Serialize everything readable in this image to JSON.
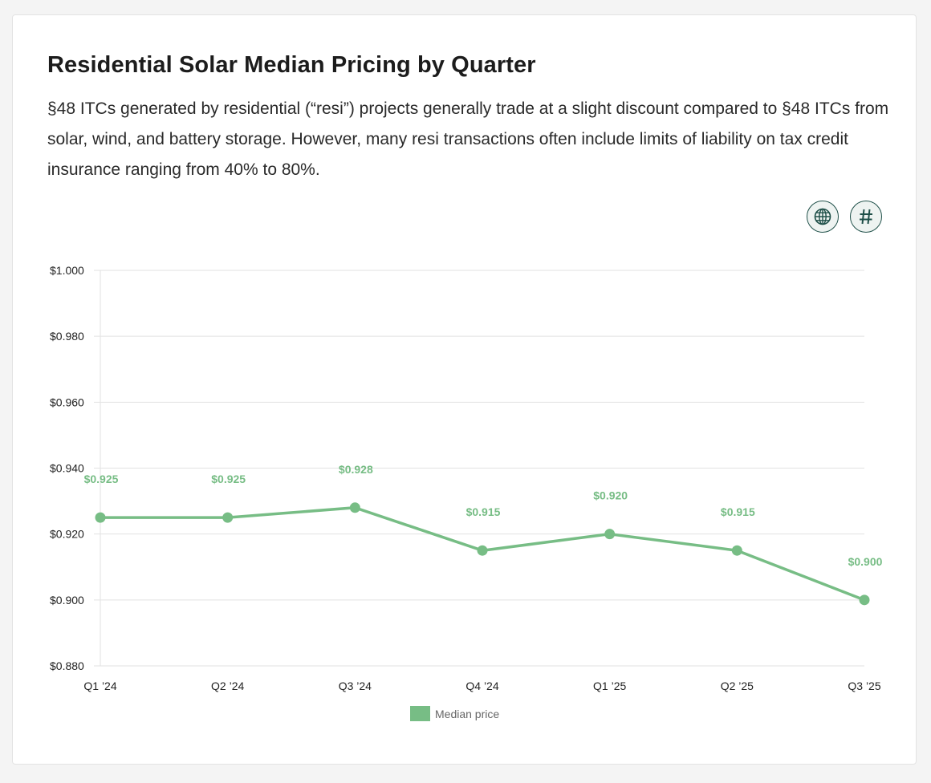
{
  "header": {
    "title": "Residential Solar Median Pricing by Quarter",
    "description": "§48 ITCs generated by residential (“resi”) projects generally trade at a slight discount compared to §48 ITCs from solar, wind, and battery storage. However, many resi transactions often include limits of liability on tax credit insurance ranging from 40% to 80%."
  },
  "toolbar": {
    "globe_icon": "globe-icon",
    "hash_icon": "hash-icon"
  },
  "colors": {
    "series": "#77bd85",
    "label": "#77bd85",
    "grid": "#e2e2e2",
    "icon_border": "#1e4f48"
  },
  "chart_data": {
    "type": "line",
    "title": "Residential Solar Median Pricing by Quarter",
    "xlabel": "",
    "ylabel": "",
    "categories": [
      "Q1 '24",
      "Q2 '24",
      "Q3 '24",
      "Q4 '24",
      "Q1 '25",
      "Q2 '25",
      "Q3 '25"
    ],
    "series": [
      {
        "name": "Median price",
        "values": [
          0.925,
          0.925,
          0.928,
          0.915,
          0.92,
          0.915,
          0.9
        ],
        "labels": [
          "$0.925",
          "$0.925",
          "$0.928",
          "$0.915",
          "$0.920",
          "$0.915",
          "$0.900"
        ]
      }
    ],
    "ylim": [
      0.88,
      1.0
    ],
    "yticks": [
      1.0,
      0.98,
      0.96,
      0.94,
      0.92,
      0.9,
      0.88
    ],
    "ytick_labels": [
      "$1.000",
      "$0.980",
      "$0.960",
      "$0.940",
      "$0.920",
      "$0.900",
      "$0.880"
    ],
    "grid": true,
    "legend": "bottom-center"
  }
}
